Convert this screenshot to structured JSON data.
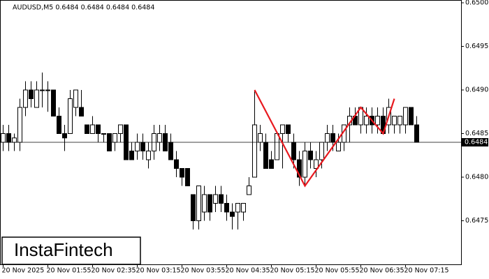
{
  "chart_data": {
    "type": "candlestick",
    "title": "AUDUSD,M5  0.6484 0.6484 0.6484 0.6484",
    "watermark": "InstaFintech",
    "categories": [
      "20 Nov 2025",
      null,
      null,
      null,
      null,
      null,
      null,
      null,
      "20 Nov 01:55",
      null,
      null,
      null,
      null,
      null,
      null,
      null,
      "20 Nov 02:35",
      null,
      null,
      null,
      null,
      null,
      null,
      null,
      "20 Nov 03:15",
      null,
      null,
      null,
      null,
      null,
      null,
      null,
      "20 Nov 03:55",
      null,
      null,
      null,
      null,
      null,
      null,
      null,
      "20 Nov 04:35",
      null,
      null,
      null,
      null,
      null,
      null,
      null,
      "20 Nov 05:15",
      null,
      null,
      null,
      null,
      null,
      null,
      null,
      "20 Nov 05:55",
      null,
      null,
      null,
      null,
      null,
      null,
      null,
      "20 Nov 06:35",
      null,
      null,
      null,
      null,
      null,
      null,
      null,
      "20 Nov 07:15",
      null,
      null
    ],
    "open": [
      0.6484,
      0.6485,
      0.6484,
      0.6484,
      0.6488,
      0.649,
      0.6488,
      0.649,
      0.649,
      0.649,
      0.6487,
      0.6485,
      0.6485,
      0.6488,
      0.6488,
      0.6486,
      0.6485,
      0.6486,
      0.6485,
      0.6485,
      0.6484,
      0.6485,
      0.6486,
      0.6483,
      0.6483,
      0.6484,
      0.6482,
      0.6483,
      0.6484,
      0.6485,
      0.6484,
      0.6482,
      0.6481,
      0.6481,
      0.6478,
      0.6475,
      0.6476,
      0.6478,
      0.6477,
      0.6478,
      0.6477,
      0.6476,
      0.6476,
      0.6476,
      0.6478,
      0.648,
      0.6484,
      0.6484,
      0.6482,
      0.6482,
      0.6485,
      0.6486,
      0.6484,
      0.6482,
      0.648,
      0.6483,
      0.6481,
      0.6482,
      0.6484,
      0.6485,
      0.6483,
      0.6484,
      0.6486,
      0.6487,
      0.6486,
      0.6486,
      0.6487,
      0.6486,
      0.6487,
      0.6486,
      0.6486,
      0.6486,
      0.6486,
      0.6488,
      0.6486
    ],
    "high": [
      0.6486,
      0.6486,
      0.6485,
      0.6489,
      0.6491,
      0.6491,
      0.6491,
      0.6492,
      0.6491,
      0.649,
      0.6488,
      0.6486,
      0.649,
      0.649,
      0.649,
      0.6486,
      0.6487,
      0.6486,
      0.6485,
      0.6485,
      0.6485,
      0.6486,
      0.6486,
      0.6484,
      0.6485,
      0.6485,
      0.6484,
      0.6486,
      0.6486,
      0.6486,
      0.6485,
      0.6483,
      0.6481,
      0.6481,
      0.6478,
      0.6479,
      0.6479,
      0.6478,
      0.6479,
      0.6479,
      0.6478,
      0.6477,
      0.6477,
      0.6477,
      0.648,
      0.649,
      0.6486,
      0.6485,
      0.6483,
      0.6485,
      0.6486,
      0.6486,
      0.6485,
      0.6483,
      0.6484,
      0.6484,
      0.6483,
      0.6484,
      0.6486,
      0.6486,
      0.6485,
      0.6486,
      0.6488,
      0.6488,
      0.6488,
      0.6488,
      0.6488,
      0.6488,
      0.6488,
      0.6489,
      0.6487,
      0.6487,
      0.6488,
      0.6488,
      0.6487
    ],
    "low": [
      0.6483,
      0.6483,
      0.6483,
      0.6483,
      0.6487,
      0.6488,
      0.6488,
      0.6488,
      0.64875,
      0.6487,
      0.6485,
      0.6483,
      0.6485,
      0.6487,
      0.6487,
      0.6485,
      0.6485,
      0.6484,
      0.6484,
      0.6483,
      0.6483,
      0.6484,
      0.6482,
      0.6482,
      0.6482,
      0.6482,
      0.6481,
      0.6482,
      0.6483,
      0.6483,
      0.6482,
      0.648,
      0.6479,
      0.6479,
      0.6474,
      0.6474,
      0.6475,
      0.6475,
      0.6476,
      0.6476,
      0.6475,
      0.6474,
      0.6474,
      0.6475,
      0.6478,
      0.648,
      0.6483,
      0.6481,
      0.6481,
      0.6482,
      0.6481,
      0.6484,
      0.6481,
      0.6479,
      0.6479,
      0.6481,
      0.648,
      0.6481,
      0.6483,
      0.6483,
      0.6483,
      0.6483,
      0.6484,
      0.6486,
      0.6485,
      0.6485,
      0.6485,
      0.6485,
      0.6485,
      0.6485,
      0.6485,
      0.6485,
      0.6485,
      0.6486,
      0.6484
    ],
    "close": [
      0.6485,
      0.6484,
      0.64845,
      0.6488,
      0.649,
      0.6489,
      0.649,
      0.649,
      0.649,
      0.6487,
      0.6485,
      0.64845,
      0.6489,
      0.649,
      0.6487,
      0.6485,
      0.6486,
      0.6485,
      0.6485,
      0.6483,
      0.6485,
      0.6486,
      0.6482,
      0.6482,
      0.6484,
      0.6483,
      0.6483,
      0.6485,
      0.6485,
      0.6483,
      0.6482,
      0.6481,
      0.648,
      0.6479,
      0.6475,
      0.6479,
      0.6478,
      0.6476,
      0.6478,
      0.6477,
      0.6476,
      0.64755,
      0.6477,
      0.6477,
      0.6479,
      0.6486,
      0.6485,
      0.6481,
      0.6481,
      0.6485,
      0.6486,
      0.6485,
      0.6482,
      0.648,
      0.6483,
      0.6482,
      0.6482,
      0.6484,
      0.6485,
      0.6484,
      0.6484,
      0.6486,
      0.6487,
      0.6486,
      0.6488,
      0.6487,
      0.6486,
      0.6487,
      0.6485,
      0.6488,
      0.6487,
      0.6487,
      0.6488,
      0.6486,
      0.6484
    ],
    "ylim": [
      0.647,
      0.65
    ],
    "yticks": [
      {
        "value": 0.6475,
        "label": "0.6475"
      },
      {
        "value": 0.648,
        "label": "0.6480"
      },
      {
        "value": 0.6485,
        "label": "0.6485"
      },
      {
        "value": 0.649,
        "label": "0.6490"
      },
      {
        "value": 0.6495,
        "label": "0.6495"
      },
      {
        "value": 0.65,
        "label": "0.6500"
      }
    ],
    "current_price": 0.6484,
    "overlay": {
      "type": "line",
      "color": "#e8191f",
      "x": [
        45,
        54,
        64,
        68,
        70
      ],
      "values": [
        0.649,
        0.6479,
        0.6488,
        0.6485,
        0.6489
      ]
    }
  }
}
